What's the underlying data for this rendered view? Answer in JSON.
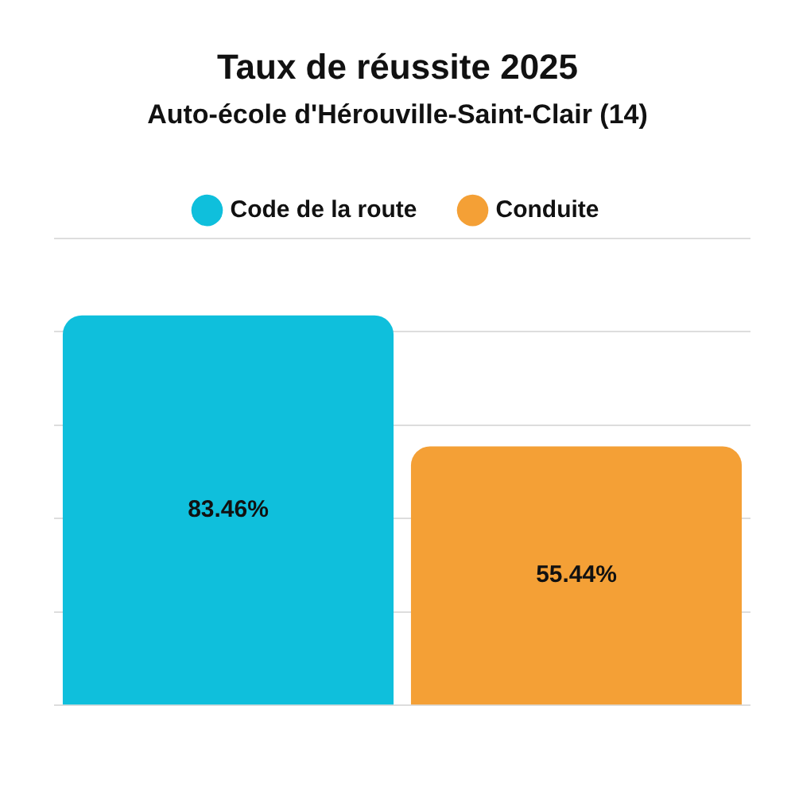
{
  "chart_data": {
    "type": "bar",
    "title": "Taux de réussite 2025",
    "subtitle": "Auto-école d'Hérouville-Saint-Clair (14)",
    "categories": [
      null
    ],
    "series": [
      {
        "name": "Code de la route",
        "color": "#0fbfdc",
        "values": [
          83.46
        ],
        "value_labels": [
          "83.46%"
        ]
      },
      {
        "name": "Conduite",
        "color": "#f4a036",
        "values": [
          55.44
        ],
        "value_labels": [
          "55.44%"
        ]
      }
    ],
    "ylim": [
      0,
      100
    ],
    "yticks": [
      {
        "value": 0,
        "label": null
      },
      {
        "value": 20,
        "label": null
      },
      {
        "value": 40,
        "label": null
      },
      {
        "value": 60,
        "label": null
      },
      {
        "value": 80,
        "label": null
      },
      {
        "value": 100,
        "label": null
      }
    ],
    "grid": "y",
    "legend": "top",
    "data_labels": true
  }
}
